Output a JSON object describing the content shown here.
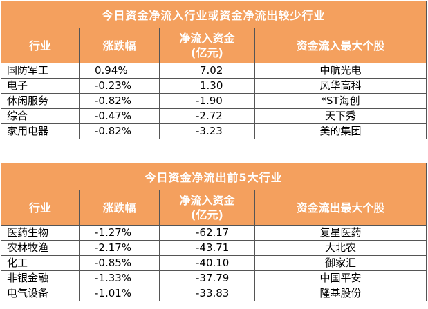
{
  "inflow_table": {
    "title": "今日资金净流入行业或资金净流出较少行业",
    "headers": {
      "industry": "行业",
      "change": "涨跌幅",
      "flow_line1": "净流入资金",
      "flow_line2": "(亿元)",
      "stock": "资金流入最大个股"
    },
    "rows": [
      {
        "industry": "国防军工",
        "change": "0.94%",
        "flow": "7.02",
        "stock": "中航光电"
      },
      {
        "industry": "电子",
        "change": "-0.23%",
        "flow": "1.30",
        "stock": "风华高科"
      },
      {
        "industry": "休闲服务",
        "change": "-0.82%",
        "flow": "-1.90",
        "stock": "*ST海创"
      },
      {
        "industry": "综合",
        "change": "-0.47%",
        "flow": "-2.72",
        "stock": "天下秀"
      },
      {
        "industry": "家用电器",
        "change": "-0.82%",
        "flow": "-3.23",
        "stock": "美的集团"
      }
    ]
  },
  "outflow_table": {
    "title": "今日资金净流出前5大行业",
    "headers": {
      "industry": "行业",
      "change": "涨跌幅",
      "flow_line1": "净流入资金",
      "flow_line2": "(亿元)",
      "stock": "资金流出最大个股"
    },
    "rows": [
      {
        "industry": "医药生物",
        "change": "-1.27%",
        "flow": "-62.17",
        "stock": "复星医药"
      },
      {
        "industry": "农林牧渔",
        "change": "-2.17%",
        "flow": "-43.71",
        "stock": "大北农"
      },
      {
        "industry": "化工",
        "change": "-0.85%",
        "flow": "-40.10",
        "stock": "御家汇"
      },
      {
        "industry": "非银金融",
        "change": "-1.33%",
        "flow": "-37.79",
        "stock": "中国平安"
      },
      {
        "industry": "电气设备",
        "change": "-1.01%",
        "flow": "-33.83",
        "stock": "隆基股份"
      }
    ]
  },
  "colors": {
    "header_background": "#f4a05e",
    "header_text": "#ffffff",
    "grid_line": "#555555"
  }
}
